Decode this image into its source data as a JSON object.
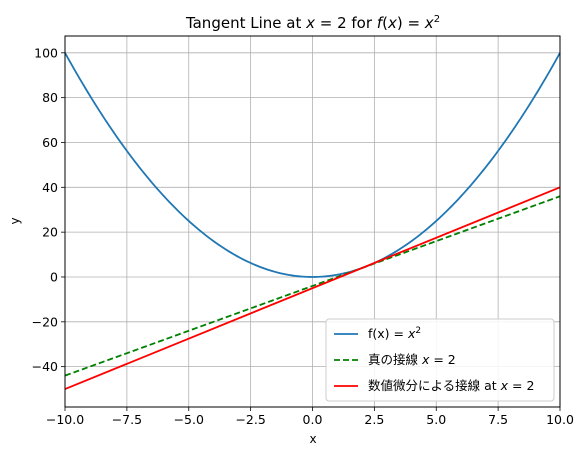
{
  "chart_data": {
    "type": "line",
    "title": "Tangent Line at x = 2 for f(x) = x²",
    "xlabel": "x",
    "ylabel": "y",
    "xlim": [
      -10,
      10
    ],
    "ylim": [
      -58,
      107.5
    ],
    "grid": true,
    "legend_position": "lower-right",
    "xticks": [
      -10,
      -7.5,
      -5,
      -2.5,
      0,
      2.5,
      5,
      7.5,
      10
    ],
    "xtick_labels": [
      "−10.0",
      "−7.5",
      "−5.0",
      "−2.5",
      "0.0",
      "2.5",
      "5.0",
      "7.5",
      "10.0"
    ],
    "yticks": [
      -40,
      -20,
      0,
      20,
      40,
      60,
      80,
      100
    ],
    "ytick_labels": [
      "−40",
      "−20",
      "0",
      "20",
      "40",
      "60",
      "80",
      "100"
    ],
    "series": [
      {
        "name": "f(x) = x²",
        "kind": "function",
        "formula": "x^2",
        "color": "#1f77b4",
        "style": "solid",
        "x": [
          -10,
          -9,
          -8,
          -7,
          -6,
          -5,
          -4,
          -3,
          -2,
          -1,
          0,
          1,
          2,
          3,
          4,
          5,
          6,
          7,
          8,
          9,
          10
        ],
        "values": [
          100,
          81,
          64,
          49,
          36,
          25,
          16,
          9,
          4,
          1,
          0,
          1,
          4,
          9,
          16,
          25,
          36,
          49,
          64,
          81,
          100
        ]
      },
      {
        "name": "真の接線 x = 2",
        "kind": "line",
        "slope": 4,
        "intercept": -4,
        "color": "#008000",
        "style": "dashed",
        "x": [
          -10,
          10
        ],
        "values": [
          -44,
          36
        ]
      },
      {
        "name": "数値微分による接線 at x = 2",
        "kind": "line",
        "slope": 4.5,
        "intercept": -5,
        "color": "#ff0000",
        "style": "solid",
        "x": [
          -10,
          10
        ],
        "values": [
          -50,
          40
        ]
      }
    ]
  }
}
